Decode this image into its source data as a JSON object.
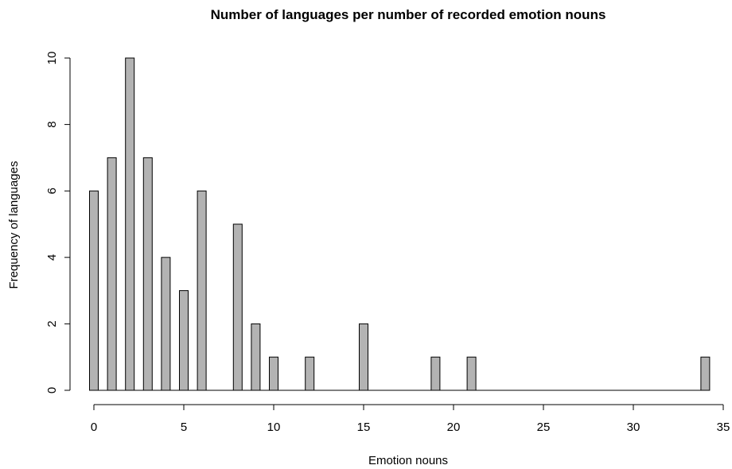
{
  "chart_data": {
    "type": "bar",
    "title": "Number of languages per number of recorded emotion nouns",
    "xlabel": "Emotion nouns",
    "ylabel": "Frequency of languages",
    "xlim": [
      0,
      35
    ],
    "ylim": [
      0,
      10
    ],
    "x_ticks": [
      0,
      5,
      10,
      15,
      20,
      25,
      30,
      35
    ],
    "y_ticks": [
      0,
      2,
      4,
      6,
      8,
      10
    ],
    "x": [
      0,
      1,
      2,
      3,
      4,
      5,
      6,
      7,
      8,
      9,
      10,
      11,
      12,
      13,
      14,
      15,
      16,
      17,
      18,
      19,
      20,
      21,
      22,
      23,
      24,
      25,
      26,
      27,
      28,
      29,
      30,
      31,
      32,
      33,
      34
    ],
    "values": [
      6,
      7,
      10,
      7,
      4,
      3,
      6,
      0,
      5,
      2,
      1,
      0,
      1,
      0,
      0,
      2,
      0,
      0,
      0,
      1,
      0,
      1,
      0,
      0,
      0,
      0,
      0,
      0,
      0,
      0,
      0,
      0,
      0,
      0,
      1
    ],
    "grid": false,
    "legend": "none"
  }
}
